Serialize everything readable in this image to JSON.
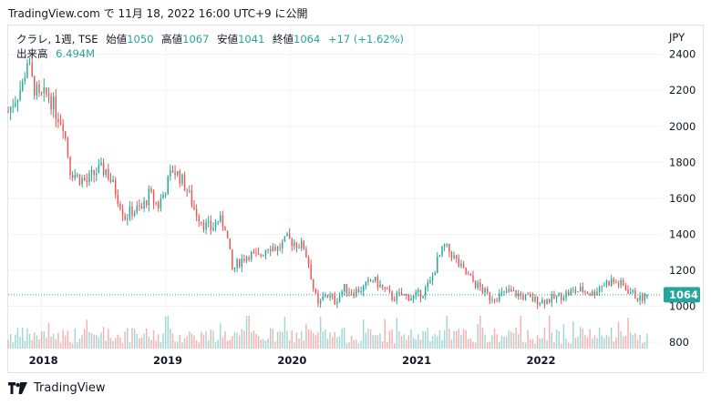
{
  "header": {
    "text": "TradingView.com で 11月 18, 2022 16:00 UTC+9 に公開"
  },
  "legend": {
    "symbol": "クラレ, 1週, TSE",
    "open_label": "始値",
    "open": "1050",
    "high_label": "高値",
    "high": "1067",
    "low_label": "安値",
    "low": "1041",
    "close_label": "終値",
    "close": "1064",
    "change": "+17 (+1.62%)",
    "volume_label": "出来高",
    "volume": "6.494M"
  },
  "footer": {
    "brand": "TradingView",
    "logo_icon": "tradingview-logo-icon"
  },
  "colors": {
    "up": "#26a69a",
    "down": "#ef5350",
    "up_vol": "#9fd8d3",
    "down_vol": "#f6b0ae",
    "grid": "#f0f3fa",
    "price_tag": "#26a69a"
  },
  "chart_data": {
    "type": "candlestick",
    "currency": "JPY",
    "interval": "1W",
    "y_ticks": [
      800,
      1000,
      1200,
      1400,
      1600,
      1800,
      2000,
      2200,
      2400
    ],
    "ylim": [
      760,
      2560
    ],
    "x_ticks": [
      "2018",
      "2019",
      "2020",
      "2021",
      "2022"
    ],
    "xlim": [
      "2017-09-25",
      "2022-12-27"
    ],
    "last_price": 1064,
    "last_price_label": "1064",
    "grid": true,
    "legend_position": "top-left",
    "price_path": [
      [
        "2017-09-25",
        2080
      ],
      [
        "2017-10-16",
        2160
      ],
      [
        "2017-11-06",
        2230
      ],
      [
        "2017-11-20",
        2370
      ],
      [
        "2017-12-04",
        2250
      ],
      [
        "2017-12-25",
        2150
      ],
      [
        "2018-01-22",
        2180
      ],
      [
        "2018-02-12",
        2080
      ],
      [
        "2018-03-05",
        2020
      ],
      [
        "2018-03-26",
        1760
      ],
      [
        "2018-04-16",
        1720
      ],
      [
        "2018-05-14",
        1690
      ],
      [
        "2018-06-11",
        1750
      ],
      [
        "2018-07-09",
        1760
      ],
      [
        "2018-08-06",
        1640
      ],
      [
        "2018-09-03",
        1500
      ],
      [
        "2018-09-24",
        1530
      ],
      [
        "2018-10-22",
        1540
      ],
      [
        "2018-11-12",
        1620
      ],
      [
        "2018-12-10",
        1560
      ],
      [
        "2018-12-24",
        1620
      ],
      [
        "2019-01-21",
        1760
      ],
      [
        "2019-02-11",
        1720
      ],
      [
        "2019-03-04",
        1650
      ],
      [
        "2019-03-25",
        1540
      ],
      [
        "2019-04-22",
        1460
      ],
      [
        "2019-05-13",
        1430
      ],
      [
        "2019-06-03",
        1480
      ],
      [
        "2019-06-24",
        1450
      ],
      [
        "2019-07-15",
        1200
      ],
      [
        "2019-08-05",
        1250
      ],
      [
        "2019-09-02",
        1290
      ],
      [
        "2019-09-30",
        1270
      ],
      [
        "2019-10-28",
        1340
      ],
      [
        "2019-11-25",
        1320
      ],
      [
        "2019-12-23",
        1370
      ],
      [
        "2020-01-20",
        1350
      ],
      [
        "2020-02-10",
        1330
      ],
      [
        "2020-02-24",
        1240
      ],
      [
        "2020-03-09",
        1100
      ],
      [
        "2020-03-23",
        1000
      ],
      [
        "2020-04-13",
        1070
      ],
      [
        "2020-05-11",
        1030
      ],
      [
        "2020-06-08",
        1100
      ],
      [
        "2020-07-06",
        1080
      ],
      [
        "2020-08-03",
        1100
      ],
      [
        "2020-08-31",
        1150
      ],
      [
        "2020-09-28",
        1100
      ],
      [
        "2020-10-26",
        1050
      ],
      [
        "2020-11-23",
        1060
      ],
      [
        "2020-12-28",
        1050
      ],
      [
        "2021-01-25",
        1080
      ],
      [
        "2021-02-15",
        1130
      ],
      [
        "2021-03-08",
        1250
      ],
      [
        "2021-03-29",
        1330
      ],
      [
        "2021-04-19",
        1290
      ],
      [
        "2021-05-17",
        1210
      ],
      [
        "2021-06-14",
        1150
      ],
      [
        "2021-07-12",
        1100
      ],
      [
        "2021-08-09",
        1050
      ],
      [
        "2021-09-06",
        1060
      ],
      [
        "2021-10-04",
        1080
      ],
      [
        "2021-11-08",
        1060
      ],
      [
        "2021-12-06",
        1040
      ],
      [
        "2022-01-10",
        1030
      ],
      [
        "2022-02-07",
        1040
      ],
      [
        "2022-03-07",
        1060
      ],
      [
        "2022-04-04",
        1080
      ],
      [
        "2022-05-09",
        1090
      ],
      [
        "2022-06-06",
        1070
      ],
      [
        "2022-07-04",
        1120
      ],
      [
        "2022-08-01",
        1140
      ],
      [
        "2022-08-29",
        1120
      ],
      [
        "2022-09-26",
        1080
      ],
      [
        "2022-10-24",
        1040
      ],
      [
        "2022-11-14",
        1064
      ]
    ],
    "volume_range_shares": [
      0,
      30000000
    ]
  }
}
